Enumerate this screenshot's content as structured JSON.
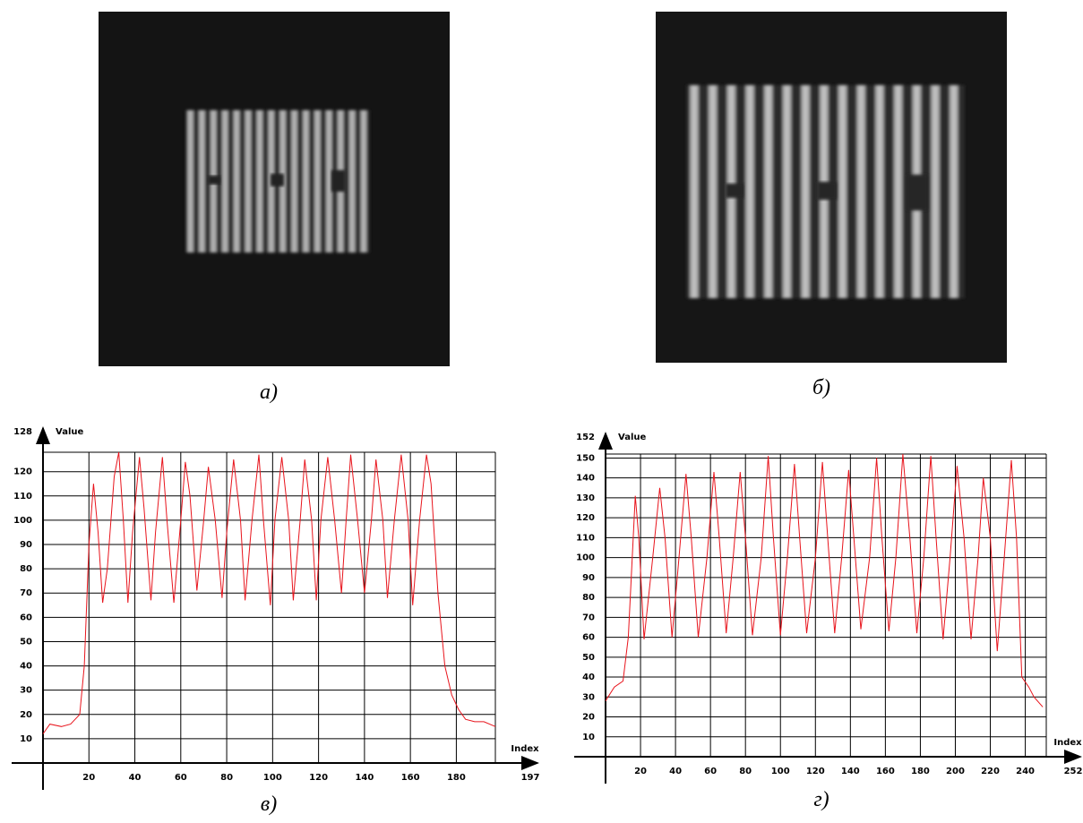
{
  "panels": [
    {
      "caption": "а)"
    },
    {
      "caption": "б)"
    }
  ],
  "chart_data": [
    {
      "type": "line",
      "caption": "в)",
      "y_label": "Value",
      "x_label": "Index",
      "xlim": [
        0,
        197
      ],
      "ylim": [
        0,
        128
      ],
      "xticks": [
        20,
        40,
        60,
        80,
        100,
        120,
        140,
        160,
        180
      ],
      "yticks": [
        10,
        20,
        30,
        40,
        50,
        60,
        70,
        80,
        90,
        100,
        110,
        120
      ],
      "grid": true,
      "color": "#e8141c",
      "x": [
        0,
        3,
        8,
        12,
        16,
        18,
        20,
        22,
        24,
        26,
        28,
        31,
        33,
        35,
        37,
        39,
        42,
        44,
        47,
        49,
        52,
        54,
        57,
        60,
        62,
        64,
        67,
        70,
        72,
        75,
        78,
        80,
        83,
        86,
        88,
        91,
        94,
        96,
        99,
        101,
        104,
        107,
        109,
        112,
        114,
        117,
        119,
        121,
        124,
        127,
        130,
        132,
        134,
        137,
        140,
        143,
        145,
        148,
        150,
        153,
        156,
        159,
        161,
        164,
        167,
        169,
        172,
        175,
        178,
        181,
        184,
        188,
        192,
        197
      ],
      "values": [
        12,
        16,
        15,
        16,
        20,
        40,
        90,
        115,
        95,
        66,
        80,
        118,
        128,
        100,
        66,
        95,
        126,
        105,
        67,
        95,
        126,
        100,
        66,
        100,
        124,
        110,
        71,
        100,
        122,
        100,
        68,
        95,
        125,
        100,
        67,
        100,
        127,
        100,
        65,
        100,
        126,
        100,
        67,
        100,
        125,
        100,
        67,
        100,
        126,
        100,
        70,
        100,
        127,
        100,
        70,
        100,
        125,
        100,
        68,
        100,
        127,
        100,
        65,
        100,
        127,
        115,
        70,
        40,
        28,
        22,
        18,
        17,
        17,
        15
      ]
    },
    {
      "type": "line",
      "caption": "г)",
      "y_label": "Value",
      "x_label": "Index",
      "xlim": [
        0,
        252
      ],
      "ylim": [
        0,
        152
      ],
      "xticks": [
        20,
        40,
        60,
        80,
        100,
        120,
        140,
        160,
        180,
        200,
        220,
        240
      ],
      "yticks": [
        10,
        20,
        30,
        40,
        50,
        60,
        70,
        80,
        90,
        100,
        110,
        120,
        130,
        140,
        150
      ],
      "grid": true,
      "color": "#e8141c",
      "x": [
        0,
        5,
        10,
        13,
        17,
        19,
        22,
        27,
        31,
        34,
        38,
        42,
        46,
        49,
        53,
        58,
        62,
        65,
        69,
        73,
        77,
        80,
        84,
        89,
        93,
        96,
        100,
        104,
        108,
        111,
        115,
        120,
        124,
        127,
        131,
        135,
        139,
        142,
        146,
        151,
        155,
        158,
        162,
        166,
        170,
        174,
        178,
        182,
        186,
        189,
        193,
        197,
        201,
        205,
        209,
        213,
        216,
        220,
        224,
        228,
        232,
        235,
        238,
        242,
        245,
        250
      ],
      "values": [
        28,
        35,
        38,
        60,
        131,
        110,
        59,
        100,
        135,
        110,
        60,
        100,
        142,
        110,
        60,
        100,
        143,
        110,
        62,
        100,
        143,
        110,
        61,
        100,
        151,
        110,
        61,
        100,
        147,
        110,
        62,
        100,
        148,
        110,
        62,
        100,
        144,
        110,
        64,
        100,
        150,
        110,
        63,
        100,
        152,
        110,
        62,
        100,
        151,
        110,
        59,
        100,
        146,
        110,
        59,
        100,
        140,
        110,
        53,
        100,
        149,
        110,
        40,
        35,
        30,
        25
      ]
    }
  ]
}
